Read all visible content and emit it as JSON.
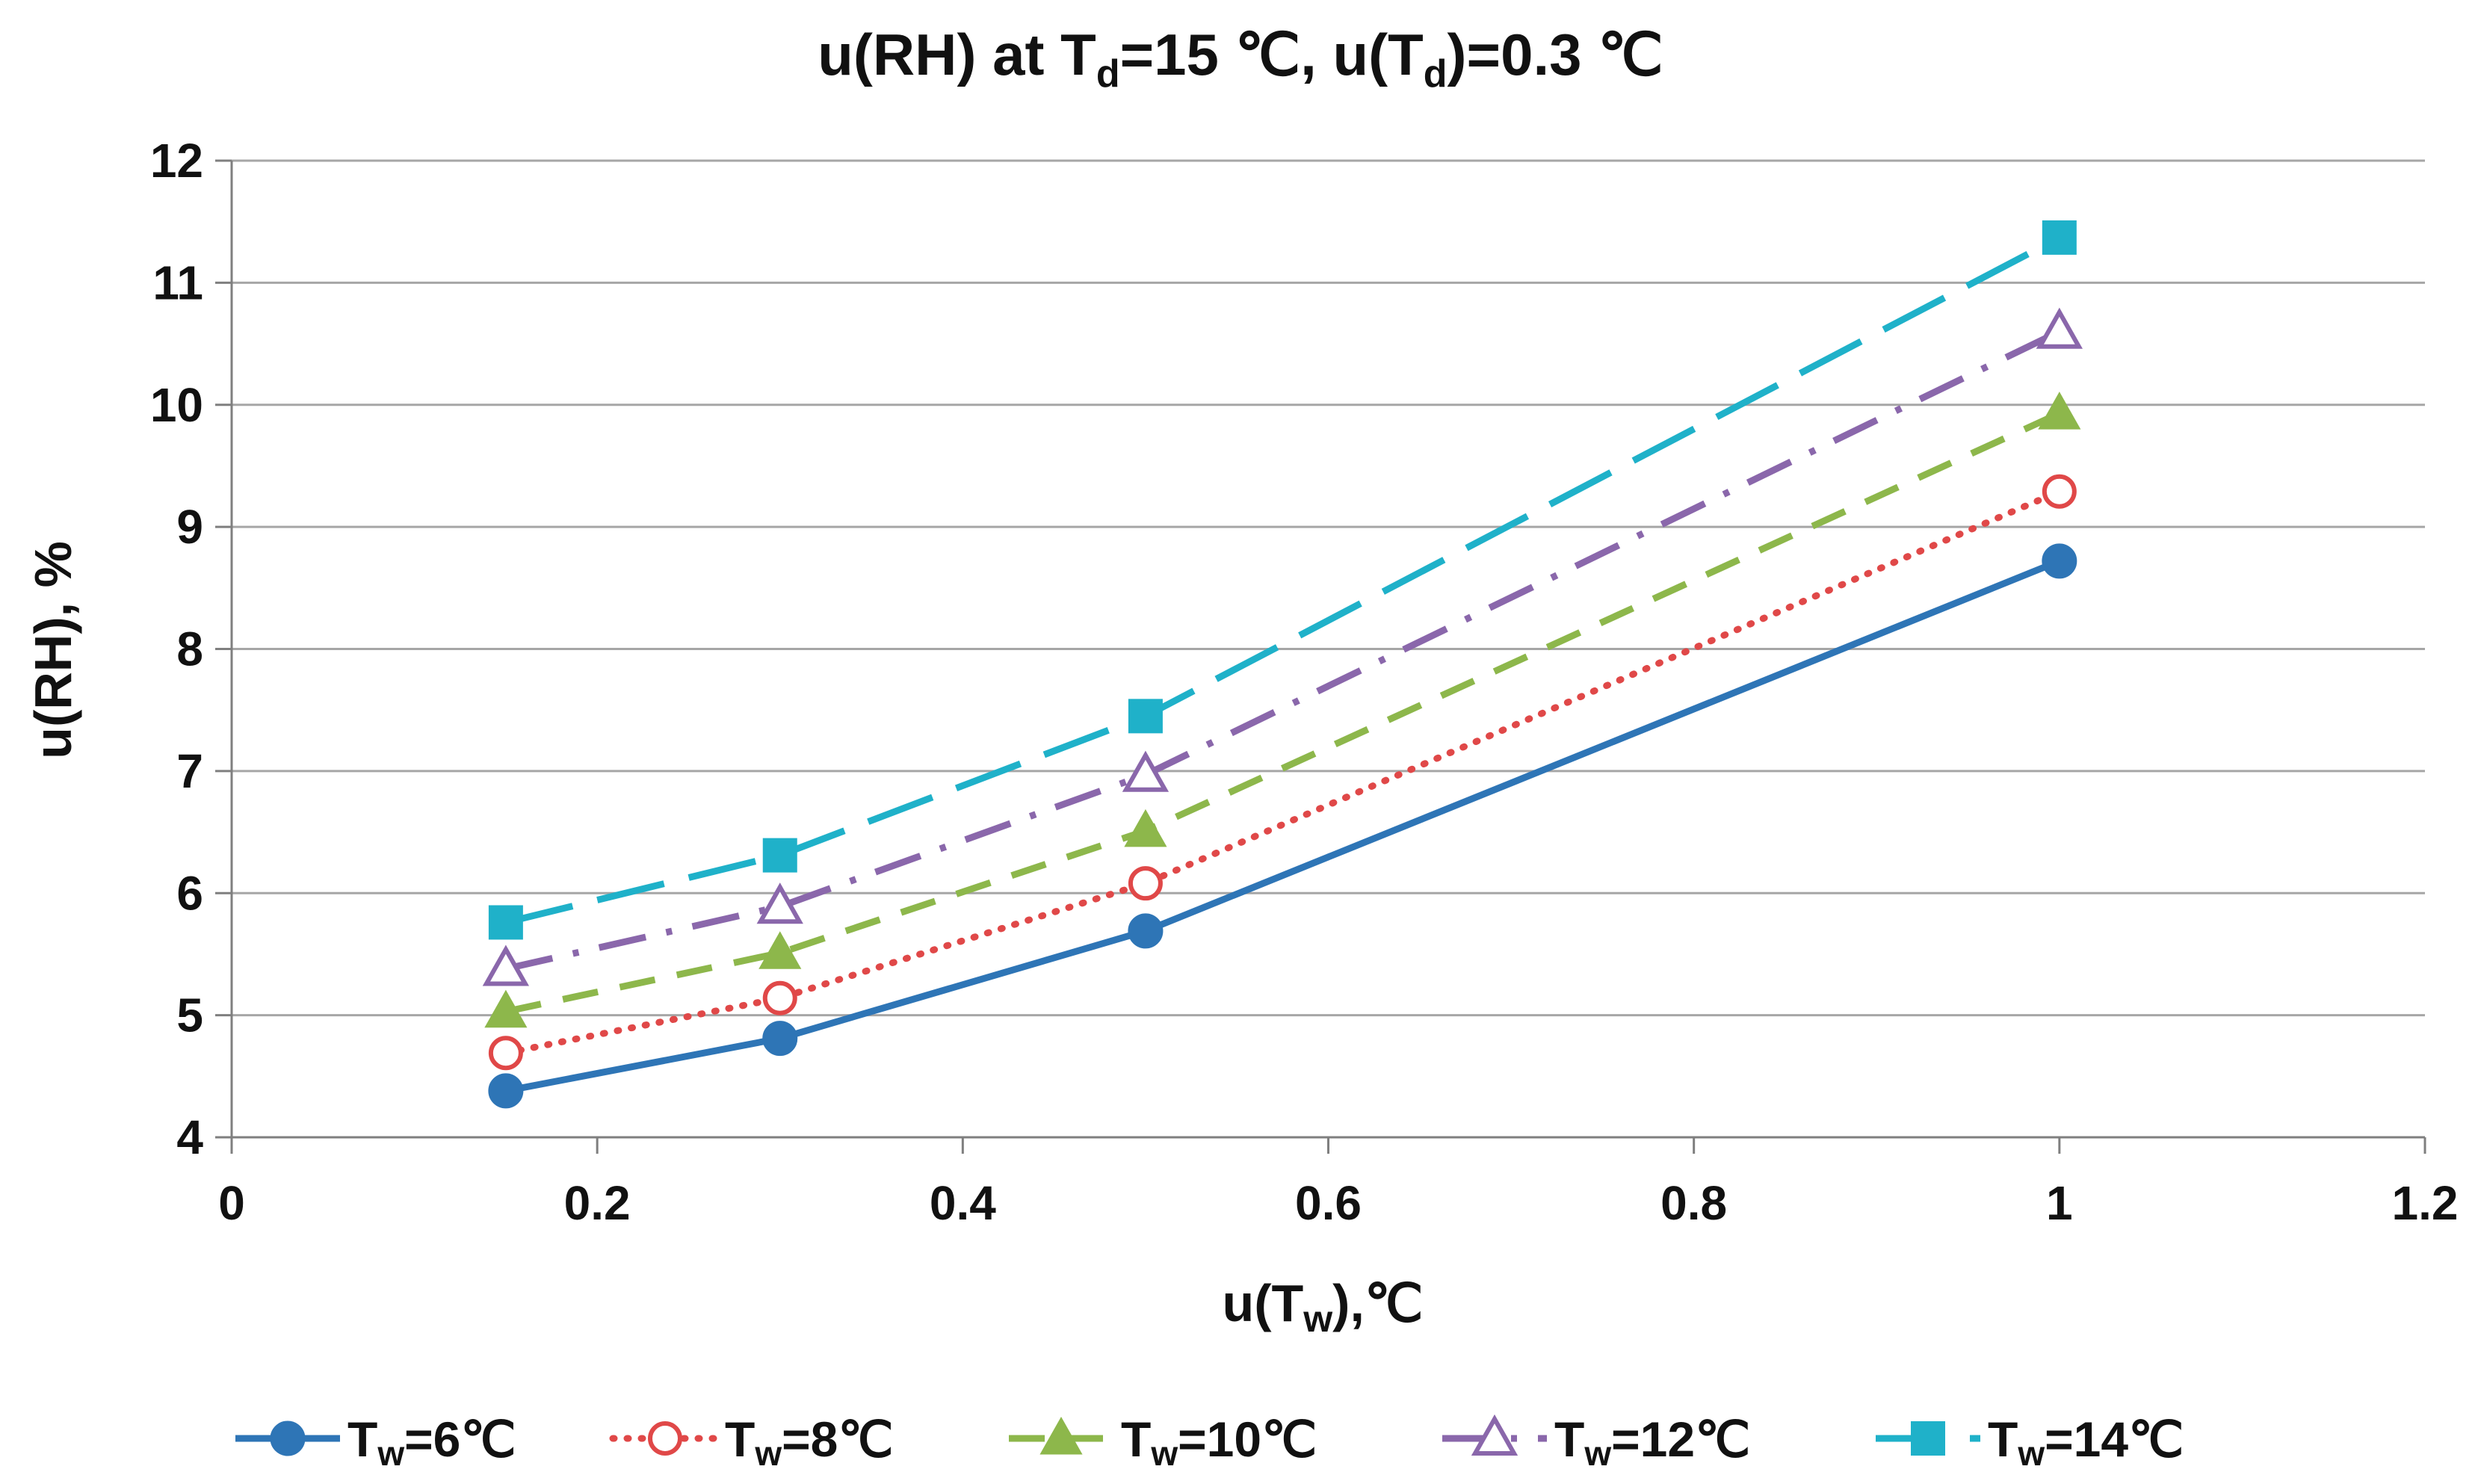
{
  "chart_data": {
    "type": "line",
    "title": {
      "prefix": "u(RH) at T",
      "sub1": "d",
      "mid": "=15 ℃, u(T",
      "sub2": "d",
      "suffix": ")=0.3 ℃"
    },
    "xlabel": {
      "prefix": "u(T",
      "sub": "w",
      "suffix": "),℃"
    },
    "ylabel": "u(RH), %",
    "xlim": [
      0,
      1.2
    ],
    "ylim": [
      4,
      12
    ],
    "x_ticks": [
      "0",
      "0.2",
      "0.4",
      "0.6",
      "0.8",
      "1",
      "1.2"
    ],
    "y_ticks": [
      "4",
      "5",
      "6",
      "7",
      "8",
      "9",
      "10",
      "11",
      "12"
    ],
    "grid": "horizontal",
    "legend_position": "bottom",
    "x": [
      0.15,
      0.3,
      0.5,
      1.0
    ],
    "series": [
      {
        "name": "Tw=6℃",
        "label_prefix": "T",
        "label_sub": "w",
        "label_suffix": "=6℃",
        "values": [
          4.38,
          4.81,
          5.69,
          8.72
        ],
        "color": "#2E75B6",
        "marker": "circle-filled",
        "line": "solid"
      },
      {
        "name": "Tw=8℃",
        "label_prefix": "T",
        "label_sub": "w",
        "label_suffix": "=8℃",
        "values": [
          4.69,
          5.14,
          6.08,
          9.29
        ],
        "color": "#E04848",
        "marker": "circle-open",
        "line": "dotted"
      },
      {
        "name": "Tw=10℃",
        "label_prefix": "T",
        "label_sub": "w",
        "label_suffix": "=10℃",
        "values": [
          5.03,
          5.51,
          6.51,
          9.93
        ],
        "color": "#8DB74B",
        "marker": "triangle-filled",
        "line": "dashed"
      },
      {
        "name": "Tw=12℃",
        "label_prefix": "T",
        "label_sub": "w",
        "label_suffix": "=12℃",
        "values": [
          5.38,
          5.89,
          6.97,
          10.6
        ],
        "color": "#8A67AB",
        "marker": "triangle-open",
        "line": "dashdot"
      },
      {
        "name": "Tw=14℃",
        "label_prefix": "T",
        "label_sub": "w",
        "label_suffix": "=14℃",
        "values": [
          5.76,
          6.31,
          7.45,
          11.37
        ],
        "color": "#1FB1C9",
        "marker": "square-filled",
        "line": "longdash"
      }
    ]
  }
}
